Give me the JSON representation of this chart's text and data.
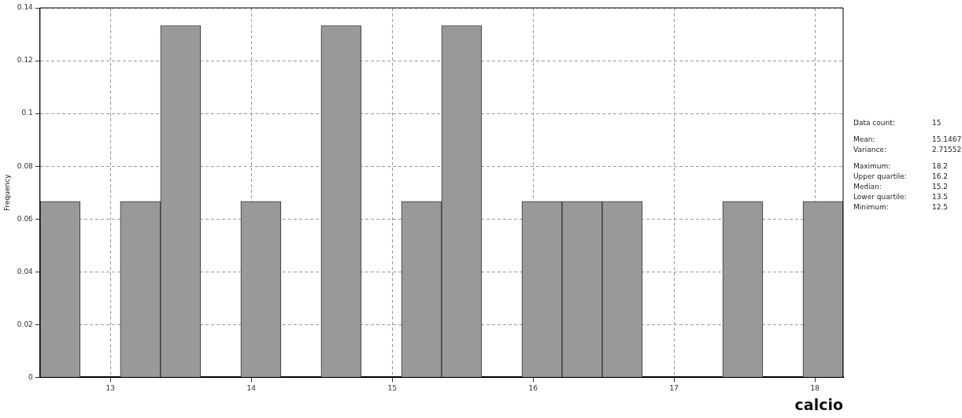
{
  "chart_data": {
    "type": "histogram",
    "xlabel": "calcio",
    "ylabel": "Frequency",
    "bins": [
      12.5,
      12.785,
      13.07,
      13.355,
      13.64,
      13.925,
      14.21,
      14.495,
      14.78,
      15.065,
      15.35,
      15.635,
      15.92,
      16.205,
      16.49,
      16.775,
      17.06,
      17.345,
      17.63,
      17.915,
      18.2
    ],
    "values": [
      0.0667,
      0,
      0.0667,
      0.1333,
      0,
      0.0667,
      0,
      0.1333,
      0,
      0.0667,
      0.1333,
      0,
      0.0667,
      0.0667,
      0.0667,
      0,
      0,
      0.0667,
      0,
      0.0667
    ],
    "color": "#999999",
    "xlim": [
      12.5,
      18.2
    ],
    "xticks": [
      13,
      14,
      15,
      16,
      17,
      18
    ],
    "ylim": [
      0,
      0.14
    ],
    "yticks": [
      0,
      0.02,
      0.04,
      0.06,
      0.08,
      0.1,
      0.12,
      0.14
    ],
    "grid": true,
    "legend": false,
    "annotations": [
      "Data count:",
      "15",
      "Mean:",
      "15.1467",
      "Variance:",
      "2.71552",
      "Maximum:",
      "18.2",
      "Upper quartile:",
      "16.2",
      "Median:",
      "15.2",
      "Lower quartile:",
      "13.5",
      "Minimum:",
      "12.5"
    ]
  }
}
